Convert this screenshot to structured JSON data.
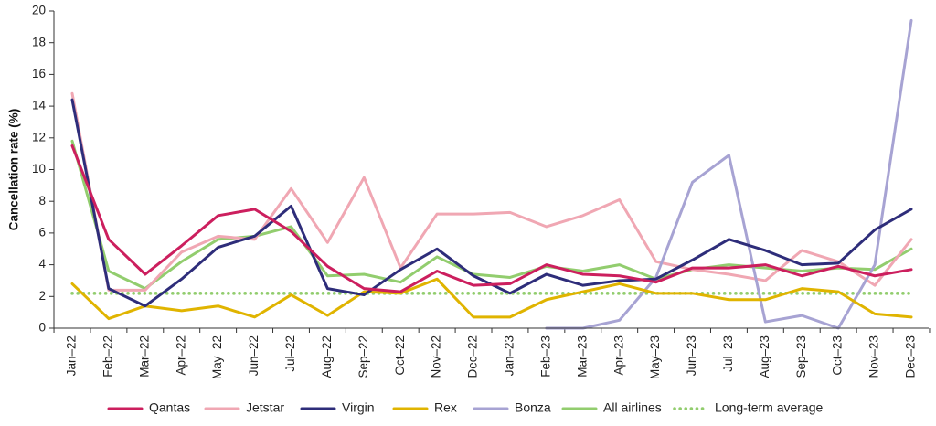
{
  "chart_data": {
    "type": "line",
    "title": "",
    "xlabel": "",
    "ylabel": "Cancellation rate (%)",
    "ylim": [
      0,
      20
    ],
    "yticks": [
      0,
      2,
      4,
      6,
      8,
      10,
      12,
      14,
      16,
      18,
      20
    ],
    "grid": false,
    "legend_position": "bottom",
    "categories": [
      "Jan–22",
      "Feb–22",
      "Mar–22",
      "Apr–22",
      "May–22",
      "Jun–22",
      "Jul–22",
      "Aug–22",
      "Sep–22",
      "Oct–22",
      "Nov–22",
      "Dec–22",
      "Jan–23",
      "Feb–23",
      "Mar–23",
      "Apr–23",
      "May–23",
      "Jun–23",
      "Jul–23",
      "Aug–23",
      "Sep–23",
      "Oct–23",
      "Nov–23",
      "Dec–23"
    ],
    "series": [
      {
        "name": "Qantas",
        "color": "#cc1f5e",
        "style": "solid",
        "values": [
          11.5,
          5.6,
          3.4,
          5.2,
          7.1,
          7.5,
          6.1,
          3.9,
          2.5,
          2.3,
          3.6,
          2.7,
          2.8,
          4.0,
          3.4,
          3.3,
          2.9,
          3.8,
          3.8,
          4.0,
          3.3,
          3.9,
          3.3,
          3.7
        ]
      },
      {
        "name": "Jetstar",
        "color": "#f0a7b3",
        "style": "solid",
        "values": [
          14.8,
          2.4,
          2.4,
          4.8,
          5.8,
          5.6,
          8.8,
          5.4,
          9.5,
          3.8,
          7.2,
          7.2,
          7.3,
          6.4,
          7.1,
          8.1,
          4.2,
          3.7,
          3.4,
          3.0,
          4.9,
          4.2,
          2.7,
          5.6
        ]
      },
      {
        "name": "Virgin",
        "color": "#2e2d7a",
        "style": "solid",
        "values": [
          14.4,
          2.5,
          1.4,
          3.1,
          5.1,
          5.8,
          7.7,
          2.5,
          2.1,
          3.7,
          5.0,
          3.3,
          2.2,
          3.4,
          2.7,
          3.0,
          3.1,
          4.3,
          5.6,
          4.9,
          4.0,
          4.1,
          6.2,
          7.5
        ]
      },
      {
        "name": "Rex",
        "color": "#e0b400",
        "style": "solid",
        "values": [
          2.8,
          0.6,
          1.4,
          1.1,
          1.4,
          0.7,
          2.1,
          0.8,
          2.3,
          2.2,
          3.1,
          0.7,
          0.7,
          1.8,
          2.3,
          2.8,
          2.2,
          2.2,
          1.8,
          1.8,
          2.5,
          2.3,
          0.9,
          0.7
        ]
      },
      {
        "name": "Bonza",
        "color": "#a7a3d3",
        "style": "solid",
        "values": [
          null,
          null,
          null,
          null,
          null,
          null,
          null,
          null,
          null,
          null,
          null,
          null,
          null,
          0.0,
          0.0,
          0.5,
          3.2,
          9.2,
          10.9,
          0.4,
          0.8,
          0.0,
          4.0,
          19.4
        ]
      },
      {
        "name": "All airlines",
        "color": "#92cd6e",
        "style": "solid",
        "values": [
          11.8,
          3.6,
          2.5,
          4.2,
          5.6,
          5.8,
          6.4,
          3.3,
          3.4,
          2.9,
          4.5,
          3.4,
          3.2,
          3.9,
          3.6,
          4.0,
          3.1,
          3.7,
          4.0,
          3.8,
          3.6,
          3.8,
          3.7,
          5.0
        ]
      },
      {
        "name": "Long-term average",
        "color": "#92cd6e",
        "style": "dotted",
        "values": [
          2.2,
          2.2,
          2.2,
          2.2,
          2.2,
          2.2,
          2.2,
          2.2,
          2.2,
          2.2,
          2.2,
          2.2,
          2.2,
          2.2,
          2.2,
          2.2,
          2.2,
          2.2,
          2.2,
          2.2,
          2.2,
          2.2,
          2.2,
          2.2
        ]
      }
    ]
  }
}
